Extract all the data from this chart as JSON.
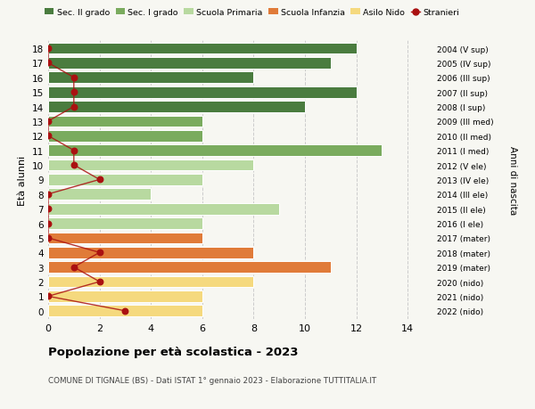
{
  "ages": [
    18,
    17,
    16,
    15,
    14,
    13,
    12,
    11,
    10,
    9,
    8,
    7,
    6,
    5,
    4,
    3,
    2,
    1,
    0
  ],
  "right_labels": [
    "2004 (V sup)",
    "2005 (IV sup)",
    "2006 (III sup)",
    "2007 (II sup)",
    "2008 (I sup)",
    "2009 (III med)",
    "2010 (II med)",
    "2011 (I med)",
    "2012 (V ele)",
    "2013 (IV ele)",
    "2014 (III ele)",
    "2015 (II ele)",
    "2016 (I ele)",
    "2017 (mater)",
    "2018 (mater)",
    "2019 (mater)",
    "2020 (nido)",
    "2021 (nido)",
    "2022 (nido)"
  ],
  "bar_values": [
    12,
    11,
    8,
    12,
    10,
    6,
    6,
    13,
    8,
    6,
    4,
    9,
    6,
    6,
    8,
    11,
    8,
    6,
    6
  ],
  "bar_colors": [
    "#4a7c3f",
    "#4a7c3f",
    "#4a7c3f",
    "#4a7c3f",
    "#4a7c3f",
    "#7aab5e",
    "#7aab5e",
    "#7aab5e",
    "#b8d9a0",
    "#b8d9a0",
    "#b8d9a0",
    "#b8d9a0",
    "#b8d9a0",
    "#e07b39",
    "#e07b39",
    "#e07b39",
    "#f5d97e",
    "#f5d97e",
    "#f5d97e"
  ],
  "stranieri_x": [
    0,
    0,
    1,
    1,
    1,
    0,
    0,
    1,
    1,
    2,
    0,
    0,
    0,
    0,
    2,
    1,
    2,
    0,
    3
  ],
  "legend_labels": [
    "Sec. II grado",
    "Sec. I grado",
    "Scuola Primaria",
    "Scuola Infanzia",
    "Asilo Nido",
    "Stranieri"
  ],
  "legend_colors": [
    "#4a7c3f",
    "#7aab5e",
    "#b8d9a0",
    "#e07b39",
    "#f5d97e",
    "#cc0000"
  ],
  "title": "Popolazione per età scolastica - 2023",
  "subtitle": "COMUNE DI TIGNALE (BS) - Dati ISTAT 1° gennaio 2023 - Elaborazione TUTTITALIA.IT",
  "ylabel_left": "Età alunni",
  "ylabel_right": "Anni di nascita",
  "background_color": "#f7f7f2",
  "stranieri_color": "#aa1111",
  "bar_height": 0.78
}
